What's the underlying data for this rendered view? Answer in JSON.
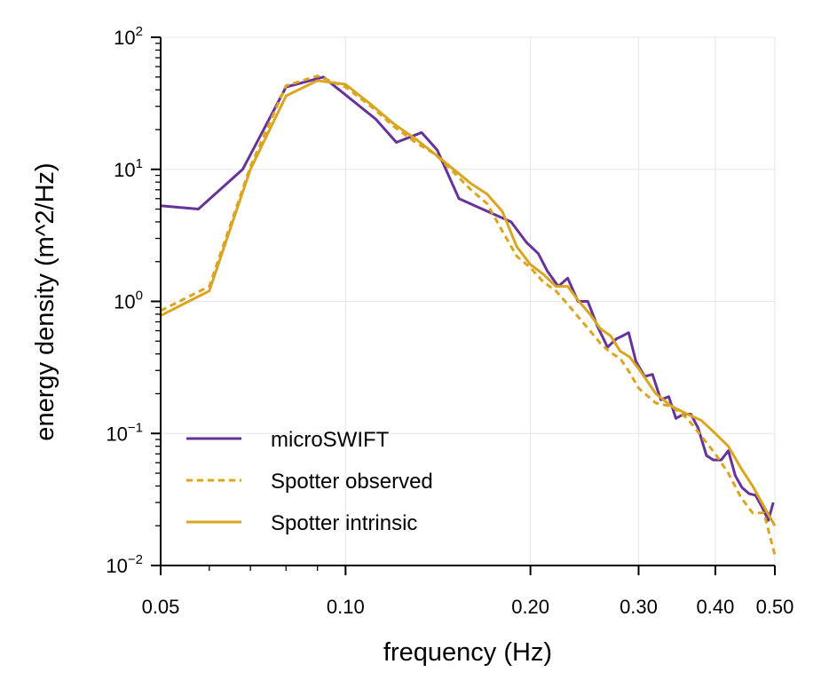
{
  "chart_data": {
    "type": "line",
    "title": "",
    "xlabel": "frequency (Hz)",
    "ylabel": "energy density (m^2/Hz)",
    "xscale": "log",
    "yscale": "log",
    "xlim": [
      0.05,
      0.5
    ],
    "ylim": [
      0.01,
      100
    ],
    "grid": true,
    "legend_position": "lower-left",
    "x_ticks": [
      {
        "value": 0.05,
        "label": "0.05"
      },
      {
        "value": 0.1,
        "label": "0.10"
      },
      {
        "value": 0.2,
        "label": "0.20"
      },
      {
        "value": 0.3,
        "label": "0.30"
      },
      {
        "value": 0.4,
        "label": "0.40"
      },
      {
        "value": 0.5,
        "label": "0.50"
      }
    ],
    "y_ticks": [
      {
        "value": 0.01,
        "base": "10",
        "exp": "−2"
      },
      {
        "value": 0.1,
        "base": "10",
        "exp": "−1"
      },
      {
        "value": 1,
        "base": "10",
        "exp": "0"
      },
      {
        "value": 10,
        "base": "10",
        "exp": "1"
      },
      {
        "value": 100,
        "base": "10",
        "exp": "2"
      }
    ],
    "series": [
      {
        "name": "microSWIFT",
        "color": "#663399",
        "style": "solid",
        "x": [
          0.05,
          0.0576,
          0.068,
          0.08,
          0.092,
          0.102,
          0.112,
          0.121,
          0.133,
          0.141,
          0.153,
          0.167,
          0.186,
          0.197,
          0.206,
          0.213,
          0.222,
          0.23,
          0.239,
          0.248,
          0.257,
          0.267,
          0.276,
          0.283,
          0.289,
          0.297,
          0.307,
          0.316,
          0.326,
          0.336,
          0.345,
          0.355,
          0.365,
          0.375,
          0.387,
          0.397,
          0.409,
          0.42,
          0.431,
          0.442,
          0.454,
          0.465,
          0.476,
          0.488,
          0.497
        ],
        "y": [
          5.3,
          5.0,
          10.0,
          42,
          50,
          34,
          24,
          16,
          19,
          14,
          6.0,
          5.0,
          4.0,
          2.8,
          2.3,
          1.7,
          1.3,
          1.5,
          1.0,
          1.0,
          0.65,
          0.45,
          0.52,
          0.55,
          0.58,
          0.35,
          0.27,
          0.28,
          0.18,
          0.19,
          0.13,
          0.14,
          0.14,
          0.11,
          0.068,
          0.063,
          0.063,
          0.074,
          0.048,
          0.039,
          0.035,
          0.034,
          0.028,
          0.022,
          0.03
        ]
      },
      {
        "name": "Spotter observed",
        "color": "#daa520",
        "style": "dashed",
        "x": [
          0.05,
          0.06,
          0.07,
          0.08,
          0.09,
          0.1,
          0.11,
          0.12,
          0.13,
          0.14,
          0.15,
          0.16,
          0.17,
          0.18,
          0.19,
          0.2,
          0.21,
          0.22,
          0.23,
          0.24,
          0.25,
          0.26,
          0.27,
          0.28,
          0.29,
          0.3,
          0.32,
          0.34,
          0.36,
          0.38,
          0.4,
          0.42,
          0.44,
          0.46,
          0.48,
          0.5
        ],
        "y": [
          0.85,
          1.3,
          10.5,
          43,
          51,
          42,
          30,
          21,
          16,
          13,
          9.5,
          7.0,
          5.5,
          3.4,
          2.2,
          1.8,
          1.4,
          1.2,
          0.95,
          0.75,
          0.6,
          0.48,
          0.41,
          0.37,
          0.29,
          0.22,
          0.17,
          0.16,
          0.13,
          0.095,
          0.07,
          0.05,
          0.033,
          0.025,
          0.025,
          0.012
        ]
      },
      {
        "name": "Spotter intrinsic",
        "color": "#daa520",
        "style": "solid",
        "x": [
          0.05,
          0.06,
          0.07,
          0.08,
          0.09,
          0.1,
          0.11,
          0.12,
          0.13,
          0.14,
          0.15,
          0.16,
          0.17,
          0.18,
          0.19,
          0.2,
          0.21,
          0.22,
          0.23,
          0.24,
          0.25,
          0.26,
          0.27,
          0.28,
          0.29,
          0.3,
          0.32,
          0.34,
          0.36,
          0.38,
          0.4,
          0.42,
          0.44,
          0.46,
          0.48,
          0.5
        ],
        "y": [
          0.78,
          1.2,
          10.0,
          36,
          47,
          44,
          31,
          22,
          17,
          13,
          10,
          7.8,
          6.5,
          4.8,
          2.6,
          1.9,
          1.6,
          1.3,
          1.3,
          1.0,
          0.8,
          0.62,
          0.55,
          0.42,
          0.38,
          0.31,
          0.2,
          0.16,
          0.14,
          0.125,
          0.1,
          0.08,
          0.055,
          0.04,
          0.028,
          0.02
        ]
      }
    ]
  }
}
